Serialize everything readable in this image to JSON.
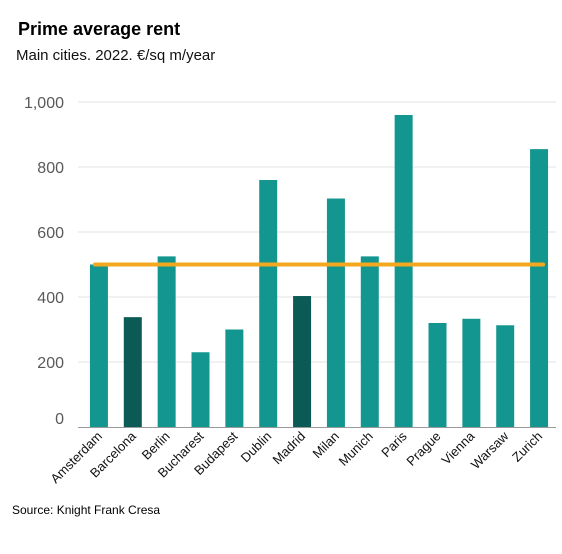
{
  "title": "Prime average rent",
  "subtitle": "Main cities. 2022. €/sq m/year",
  "source": "Source: Knight Frank Cresa",
  "colors": {
    "bar": "#13968f",
    "bar_highlight": "#0c5a55",
    "average_line": "#f3a81f",
    "grid": "#e3e3e3"
  },
  "chart_data": {
    "type": "bar",
    "title": "Prime average rent",
    "subtitle": "Main cities. 2022. €/sq m/year",
    "categories": [
      "Amsterdam",
      "Barcelona",
      "Berlin",
      "Bucharest",
      "Budapest",
      "Dublin",
      "Madrid",
      "Milan",
      "Munich",
      "Paris",
      "Prague",
      "Vienna",
      "Warsaw",
      "Zurich"
    ],
    "values": [
      500,
      338,
      525,
      230,
      300,
      760,
      403,
      703,
      525,
      960,
      320,
      333,
      313,
      855
    ],
    "highlighted": [
      "Barcelona",
      "Madrid"
    ],
    "reference_line": {
      "value": 500
    },
    "ylim": [
      0,
      1000
    ],
    "yticks": [
      0,
      200,
      400,
      600,
      800,
      1000
    ],
    "ytick_labels": [
      "0",
      "200",
      "400",
      "600",
      "800",
      "1,000"
    ],
    "xlabel": "",
    "ylabel": "",
    "grid": true,
    "legend": "none"
  }
}
